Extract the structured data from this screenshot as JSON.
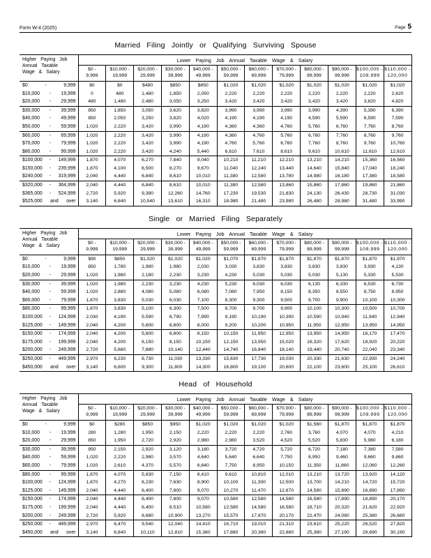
{
  "page": {
    "form_label": "Form W-4 (2025)",
    "page_label": "Page",
    "page_number": "5"
  },
  "shared": {
    "corner_lines": [
      "Higher Paying Job",
      "Annual Taxable",
      "Wage & Salary"
    ],
    "span_header": "Lower Paying Job Annual Taxable Wage & Salary",
    "columns": [
      {
        "line1": "$0 -",
        "line2": "9,999"
      },
      {
        "line1": "$10,000 -",
        "line2": "19,999"
      },
      {
        "line1": "$20,000 -",
        "line2": "29,999"
      },
      {
        "line1": "$30,000 -",
        "line2": "39,999"
      },
      {
        "line1": "$40,000 -",
        "line2": "49,999"
      },
      {
        "line1": "$50,000 -",
        "line2": "59,999"
      },
      {
        "line1": "$60,000 -",
        "line2": "69,999"
      },
      {
        "line1": "$70,000 -",
        "line2": "79,999"
      },
      {
        "line1": "$80,000 -",
        "line2": "89,999"
      },
      {
        "line1": "$90,000 -",
        "line2": "99,999"
      },
      {
        "line1": "$100,000 -",
        "line2": "109,999"
      },
      {
        "line1": "$110,000 -",
        "line2": "120,000"
      }
    ]
  },
  "tables": [
    {
      "title": "Married Filing Jointly or Qualifying Surviving Spouse",
      "rows": [
        {
          "label": [
            "$0",
            "-",
            "9,999"
          ],
          "values": [
            "$0",
            "$0",
            "$480",
            "$850",
            "$850",
            "$1,020",
            "$1,020",
            "$1,020",
            "$1,020",
            "$1,020",
            "$1,020",
            "$1,020"
          ]
        },
        {
          "label": [
            "$10,000",
            "-",
            "19,999"
          ],
          "values": [
            "0",
            "480",
            "1,480",
            "1,850",
            "2,050",
            "2,220",
            "2,220",
            "2,220",
            "2,220",
            "2,220",
            "2,220",
            "2,620"
          ]
        },
        {
          "label": [
            "$20,000",
            "-",
            "29,999"
          ],
          "values": [
            "480",
            "1,480",
            "2,480",
            "3,050",
            "3,250",
            "3,420",
            "3,420",
            "3,420",
            "3,420",
            "3,420",
            "3,820",
            "4,820"
          ]
        },
        {
          "label": [
            "$30,000",
            "-",
            "39,999"
          ],
          "values": [
            "850",
            "1,850",
            "3,050",
            "3,620",
            "3,820",
            "3,990",
            "3,990",
            "3,990",
            "3,990",
            "4,390",
            "5,390",
            "6,390"
          ]
        },
        {
          "label": [
            "$40,000",
            "-",
            "49,999"
          ],
          "values": [
            "850",
            "2,050",
            "3,250",
            "3,820",
            "4,020",
            "4,190",
            "4,190",
            "4,190",
            "4,590",
            "5,590",
            "6,590",
            "7,590"
          ]
        },
        {
          "label": [
            "$50,000",
            "-",
            "59,999"
          ],
          "values": [
            "1,020",
            "2,220",
            "3,420",
            "3,990",
            "4,190",
            "4,360",
            "4,360",
            "4,760",
            "5,760",
            "6,760",
            "7,760",
            "8,760"
          ]
        },
        {
          "label": [
            "$60,000",
            "-",
            "69,999"
          ],
          "values": [
            "1,020",
            "2,220",
            "3,420",
            "3,990",
            "4,190",
            "4,360",
            "4,760",
            "5,760",
            "6,760",
            "7,760",
            "8,760",
            "9,760"
          ]
        },
        {
          "label": [
            "$70,000",
            "-",
            "79,999"
          ],
          "values": [
            "1,020",
            "2,220",
            "3,420",
            "3,990",
            "4,190",
            "4,760",
            "5,760",
            "6,760",
            "7,760",
            "8,760",
            "9,760",
            "10,760"
          ]
        },
        {
          "label": [
            "$80,000",
            "-",
            "99,999"
          ],
          "values": [
            "1,020",
            "2,220",
            "3,420",
            "4,240",
            "5,440",
            "6,610",
            "7,610",
            "8,610",
            "9,610",
            "10,610",
            "11,610",
            "12,610"
          ]
        },
        {
          "label": [
            "$100,000",
            "-",
            "149,999"
          ],
          "values": [
            "1,870",
            "4,070",
            "6,270",
            "7,840",
            "9,040",
            "10,210",
            "11,210",
            "12,210",
            "13,210",
            "14,210",
            "15,360",
            "16,560"
          ]
        },
        {
          "label": [
            "$150,000",
            "-",
            "239,999"
          ],
          "values": [
            "1,870",
            "4,100",
            "6,500",
            "8,270",
            "9,670",
            "11,040",
            "12,240",
            "13,440",
            "14,640",
            "15,840",
            "17,040",
            "18,240"
          ]
        },
        {
          "label": [
            "$240,000",
            "-",
            "319,999"
          ],
          "values": [
            "2,040",
            "4,440",
            "6,840",
            "8,610",
            "10,010",
            "11,380",
            "12,580",
            "13,780",
            "14,980",
            "16,180",
            "17,380",
            "18,580"
          ]
        },
        {
          "label": [
            "$320,000",
            "-",
            "364,999"
          ],
          "values": [
            "2,040",
            "4,440",
            "6,840",
            "8,610",
            "10,010",
            "11,380",
            "12,580",
            "13,860",
            "15,860",
            "17,860",
            "19,860",
            "21,860"
          ]
        },
        {
          "label": [
            "$365,000",
            "-",
            "524,999"
          ],
          "values": [
            "2,720",
            "5,920",
            "9,390",
            "12,260",
            "14,760",
            "17,230",
            "19,530",
            "21,830",
            "24,130",
            "26,430",
            "28,730",
            "31,030"
          ]
        },
        {
          "label": [
            "$525,000",
            "and",
            "over"
          ],
          "values": [
            "3,140",
            "6,840",
            "10,540",
            "13,610",
            "16,310",
            "18,980",
            "21,480",
            "23,980",
            "26,480",
            "28,980",
            "31,480",
            "33,990"
          ]
        }
      ]
    },
    {
      "title": "Single or Married Filing Separately",
      "rows": [
        {
          "label": [
            "$0",
            "-",
            "9,999"
          ],
          "values": [
            "$90",
            "$850",
            "$1,020",
            "$1,020",
            "$1,020",
            "$1,070",
            "$1,870",
            "$1,870",
            "$1,870",
            "$1,870",
            "$1,870",
            "$1,970"
          ]
        },
        {
          "label": [
            "$10,000",
            "-",
            "19,999"
          ],
          "values": [
            "850",
            "1,780",
            "1,980",
            "1,980",
            "2,030",
            "3,030",
            "3,830",
            "3,830",
            "3,830",
            "3,830",
            "3,930",
            "4,130"
          ]
        },
        {
          "label": [
            "$20,000",
            "-",
            "29,999"
          ],
          "values": [
            "1,020",
            "1,980",
            "2,180",
            "2,230",
            "3,230",
            "4,230",
            "5,030",
            "5,030",
            "5,030",
            "5,130",
            "5,330",
            "5,530"
          ]
        },
        {
          "label": [
            "$30,000",
            "-",
            "39,999"
          ],
          "values": [
            "1,020",
            "1,980",
            "2,230",
            "3,230",
            "4,230",
            "5,230",
            "6,030",
            "6,030",
            "6,130",
            "6,330",
            "6,530",
            "6,730"
          ]
        },
        {
          "label": [
            "$40,000",
            "-",
            "59,999"
          ],
          "values": [
            "1,020",
            "2,880",
            "4,080",
            "5,080",
            "6,080",
            "7,080",
            "7,950",
            "8,150",
            "8,350",
            "8,550",
            "8,750",
            "8,950"
          ]
        },
        {
          "label": [
            "$60,000",
            "-",
            "79,999"
          ],
          "values": [
            "1,870",
            "3,830",
            "5,030",
            "6,030",
            "7,100",
            "8,300",
            "9,300",
            "9,500",
            "9,700",
            "9,900",
            "10,100",
            "10,300"
          ]
        },
        {
          "label": [
            "$80,000",
            "-",
            "99,999"
          ],
          "values": [
            "1,870",
            "3,830",
            "5,100",
            "6,300",
            "7,500",
            "8,700",
            "9,700",
            "9,900",
            "10,100",
            "10,300",
            "10,500",
            "10,700"
          ]
        },
        {
          "label": [
            "$100,000",
            "-",
            "124,999"
          ],
          "values": [
            "2,030",
            "4,190",
            "5,590",
            "6,790",
            "7,990",
            "9,190",
            "10,190",
            "10,390",
            "10,590",
            "10,940",
            "11,940",
            "12,940"
          ]
        },
        {
          "label": [
            "$125,000",
            "-",
            "149,999"
          ],
          "values": [
            "2,040",
            "4,200",
            "5,600",
            "6,800",
            "8,000",
            "9,200",
            "10,200",
            "10,950",
            "11,950",
            "12,950",
            "13,950",
            "14,950"
          ]
        },
        {
          "label": [
            "$150,000",
            "-",
            "174,999"
          ],
          "values": [
            "2,040",
            "4,200",
            "5,600",
            "6,800",
            "8,150",
            "10,150",
            "11,950",
            "12,950",
            "13,950",
            "14,950",
            "16,170",
            "17,470"
          ]
        },
        {
          "label": [
            "$175,000",
            "-",
            "199,999"
          ],
          "values": [
            "2,040",
            "4,200",
            "6,150",
            "8,150",
            "10,150",
            "12,150",
            "13,950",
            "15,020",
            "16,320",
            "17,620",
            "18,920",
            "20,220"
          ]
        },
        {
          "label": [
            "$200,000",
            "-",
            "249,999"
          ],
          "values": [
            "2,720",
            "5,680",
            "7,880",
            "10,140",
            "12,440",
            "14,740",
            "16,840",
            "18,140",
            "19,440",
            "20,740",
            "22,040",
            "23,340"
          ]
        },
        {
          "label": [
            "$250,000",
            "-",
            "449,999"
          ],
          "values": [
            "2,970",
            "6,230",
            "8,730",
            "11,030",
            "13,330",
            "15,630",
            "17,730",
            "19,030",
            "20,330",
            "21,630",
            "22,930",
            "24,240"
          ]
        },
        {
          "label": [
            "$450,000",
            "and",
            "over"
          ],
          "values": [
            "3,140",
            "6,600",
            "9,300",
            "11,800",
            "14,300",
            "16,800",
            "19,100",
            "20,600",
            "22,100",
            "23,600",
            "25,100",
            "26,610"
          ]
        }
      ]
    },
    {
      "title": "Head of Household",
      "rows": [
        {
          "label": [
            "$0",
            "-",
            "9,999"
          ],
          "values": [
            "$0",
            "$280",
            "$850",
            "$950",
            "$1,020",
            "$1,020",
            "$1,020",
            "$1,020",
            "$1,560",
            "$1,870",
            "$1,870",
            "$1,870"
          ]
        },
        {
          "label": [
            "$10,000",
            "-",
            "19,999"
          ],
          "values": [
            "280",
            "1,280",
            "1,950",
            "2,150",
            "2,220",
            "2,220",
            "2,220",
            "2,760",
            "3,760",
            "4,070",
            "4,070",
            "4,210"
          ]
        },
        {
          "label": [
            "$20,000",
            "-",
            "29,999"
          ],
          "values": [
            "850",
            "1,950",
            "2,720",
            "2,920",
            "2,980",
            "2,980",
            "3,520",
            "4,520",
            "5,520",
            "5,830",
            "5,980",
            "6,180"
          ]
        },
        {
          "label": [
            "$30,000",
            "-",
            "39,999"
          ],
          "values": [
            "950",
            "2,150",
            "2,920",
            "3,120",
            "3,180",
            "3,720",
            "4,720",
            "5,720",
            "6,720",
            "7,180",
            "7,380",
            "7,580"
          ]
        },
        {
          "label": [
            "$40,000",
            "-",
            "59,999"
          ],
          "values": [
            "1,020",
            "2,220",
            "2,980",
            "3,570",
            "4,640",
            "5,640",
            "6,640",
            "7,750",
            "8,950",
            "9,460",
            "9,660",
            "9,860"
          ]
        },
        {
          "label": [
            "$60,000",
            "-",
            "79,999"
          ],
          "values": [
            "1,020",
            "2,610",
            "4,370",
            "5,570",
            "6,640",
            "7,750",
            "8,950",
            "10,150",
            "11,350",
            "11,860",
            "12,060",
            "12,260"
          ]
        },
        {
          "label": [
            "$80,000",
            "-",
            "99,999"
          ],
          "values": [
            "1,870",
            "4,070",
            "5,830",
            "7,150",
            "8,410",
            "9,610",
            "10,810",
            "12,010",
            "13,210",
            "13,720",
            "13,920",
            "14,120"
          ]
        },
        {
          "label": [
            "$100,000",
            "-",
            "124,999"
          ],
          "values": [
            "1,870",
            "4,270",
            "6,230",
            "7,630",
            "8,900",
            "10,100",
            "11,300",
            "12,500",
            "13,700",
            "14,210",
            "14,720",
            "15,720"
          ]
        },
        {
          "label": [
            "$125,000",
            "-",
            "149,999"
          ],
          "values": [
            "2,040",
            "4,440",
            "6,400",
            "7,800",
            "9,070",
            "10,270",
            "11,470",
            "12,670",
            "14,580",
            "15,890",
            "16,890",
            "17,890"
          ]
        },
        {
          "label": [
            "$150,000",
            "-",
            "174,999"
          ],
          "values": [
            "2,040",
            "4,440",
            "6,400",
            "7,800",
            "9,070",
            "10,580",
            "12,580",
            "14,580",
            "16,580",
            "17,890",
            "18,890",
            "20,170"
          ]
        },
        {
          "label": [
            "$175,000",
            "-",
            "199,999"
          ],
          "values": [
            "2,040",
            "4,440",
            "6,400",
            "8,510",
            "10,580",
            "12,580",
            "14,580",
            "16,580",
            "18,710",
            "20,320",
            "21,620",
            "22,920"
          ]
        },
        {
          "label": [
            "$200,000",
            "-",
            "249,999"
          ],
          "values": [
            "2,720",
            "5,920",
            "8,680",
            "10,900",
            "13,270",
            "15,570",
            "17,870",
            "20,170",
            "22,470",
            "24,080",
            "25,380",
            "26,680"
          ]
        },
        {
          "label": [
            "$250,000",
            "-",
            "449,999"
          ],
          "values": [
            "2,970",
            "6,470",
            "9,540",
            "12,040",
            "14,410",
            "16,710",
            "19,010",
            "21,310",
            "23,610",
            "25,220",
            "26,520",
            "27,820"
          ]
        },
        {
          "label": [
            "$450,000",
            "and",
            "over"
          ],
          "values": [
            "3,140",
            "6,840",
            "10,110",
            "12,810",
            "15,380",
            "17,880",
            "20,380",
            "22,880",
            "25,380",
            "27,190",
            "28,690",
            "30,190"
          ]
        }
      ]
    }
  ]
}
